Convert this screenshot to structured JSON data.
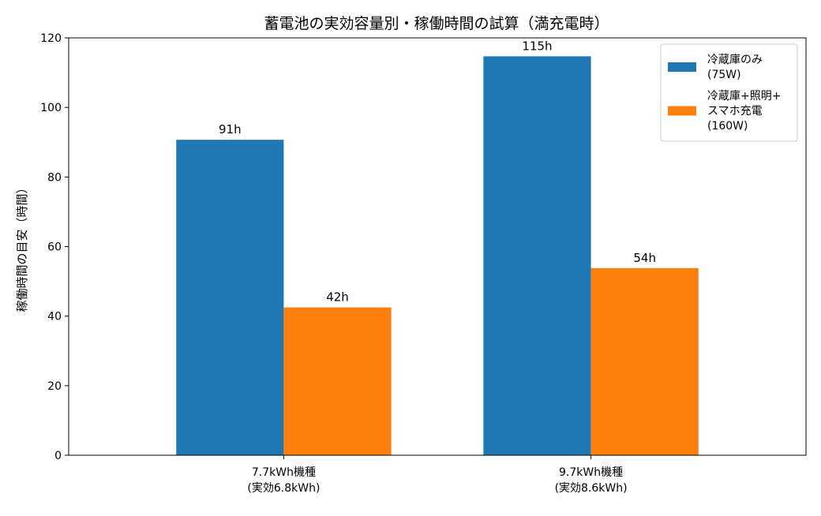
{
  "chart_data": {
    "type": "bar",
    "title": "蓄電池の実効容量別・稼働時間の試算（満充電時）",
    "xlabel": "",
    "ylabel": "稼働時間の目安（時間）",
    "ylim": [
      0,
      120
    ],
    "yticks": [
      0,
      20,
      40,
      60,
      80,
      100,
      120
    ],
    "categories": [
      [
        "7.7kWh機種",
        "(実効6.8kWh)"
      ],
      [
        "9.7kWh機種",
        "(実効8.6kWh)"
      ]
    ],
    "series": [
      {
        "name": [
          "冷蔵庫のみ",
          "(75W)"
        ],
        "color": "#1f77b4",
        "values": [
          90.7,
          114.7
        ],
        "labels": [
          "91h",
          "115h"
        ]
      },
      {
        "name": [
          "冷蔵庫+照明+",
          "スマホ充電",
          "(160W)"
        ],
        "color": "#ff7f0e",
        "values": [
          42.5,
          53.8
        ],
        "labels": [
          "42h",
          "54h"
        ]
      }
    ],
    "legend_position": "top-right",
    "grid": false
  }
}
